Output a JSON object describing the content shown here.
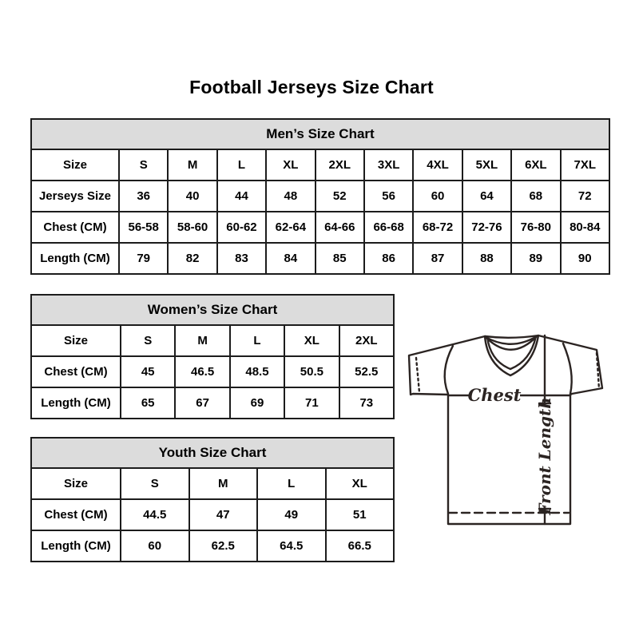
{
  "page": {
    "title": "Football Jerseys Size Chart"
  },
  "chart_data": [
    {
      "type": "table",
      "title": "Men’s Size Chart",
      "header_row": [
        "Size",
        "S",
        "M",
        "L",
        "XL",
        "2XL",
        "3XL",
        "4XL",
        "5XL",
        "6XL",
        "7XL"
      ],
      "rows": [
        [
          "Jerseys Size",
          "36",
          "40",
          "44",
          "48",
          "52",
          "56",
          "60",
          "64",
          "68",
          "72"
        ],
        [
          "Chest (CM)",
          "56-58",
          "58-60",
          "60-62",
          "62-64",
          "64-66",
          "66-68",
          "68-72",
          "72-76",
          "76-80",
          "80-84"
        ],
        [
          "Length (CM)",
          "79",
          "82",
          "83",
          "84",
          "85",
          "86",
          "87",
          "88",
          "89",
          "90"
        ]
      ]
    },
    {
      "type": "table",
      "title": "Women’s Size Chart",
      "header_row": [
        "Size",
        "S",
        "M",
        "L",
        "XL",
        "2XL"
      ],
      "rows": [
        [
          "Chest (CM)",
          "45",
          "46.5",
          "48.5",
          "50.5",
          "52.5"
        ],
        [
          "Length (CM)",
          "65",
          "67",
          "69",
          "71",
          "73"
        ]
      ]
    },
    {
      "type": "table",
      "title": "Youth Size Chart",
      "header_row": [
        "Size",
        "S",
        "M",
        "L",
        "XL"
      ],
      "rows": [
        [
          "Chest (CM)",
          "44.5",
          "47",
          "49",
          "51"
        ],
        [
          "Length (CM)",
          "60",
          "62.5",
          "64.5",
          "66.5"
        ]
      ]
    }
  ],
  "diagram": {
    "chest_label": "Chest",
    "front_length_label": "Front Length"
  },
  "colors": {
    "table_header_bg": "#dcdcdc",
    "table_border": "#1c1c1c",
    "line_art": "#2b2422",
    "text": "#000000",
    "background": "#ffffff"
  }
}
